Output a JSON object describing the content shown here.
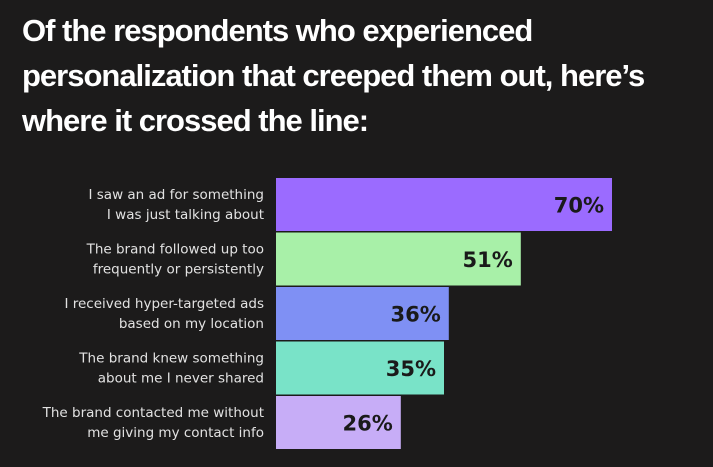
{
  "chart_data": {
    "type": "bar",
    "orientation": "horizontal",
    "title": "Of the respondents who experienced personalization that creeped them out, here’s where it crossed the line:",
    "categories": [
      [
        "I saw an ad for something",
        "I was just talking about"
      ],
      [
        "The brand followed up too",
        "frequently or persistently"
      ],
      [
        "I received hyper-targeted ads",
        "based on my location"
      ],
      [
        "The brand knew something",
        "about me I never shared"
      ],
      [
        "The brand contacted me without",
        "me giving my contact info"
      ]
    ],
    "values": [
      70,
      51,
      36,
      35,
      26
    ],
    "value_labels": [
      "70%",
      "51%",
      "36%",
      "35%",
      "26%"
    ],
    "colors": [
      "#9b6bff",
      "#a8f0a8",
      "#7f90f4",
      "#79e3c8",
      "#c7adf7"
    ],
    "xlim": [
      0,
      100
    ],
    "grid": false,
    "legend": "none"
  },
  "background": "#1c1b1b"
}
